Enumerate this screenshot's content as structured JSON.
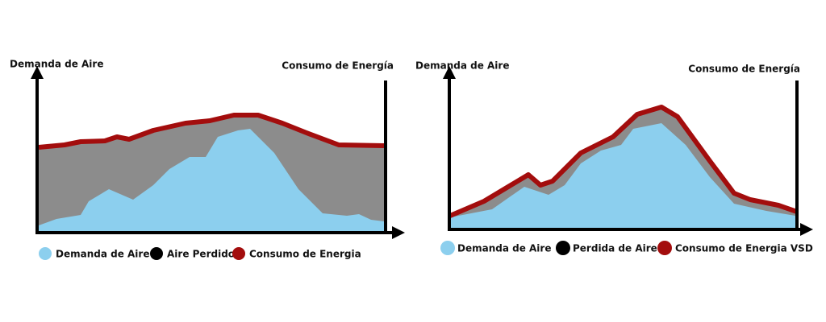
{
  "left": {
    "y_label": "Demanda de Aire",
    "y2_label": "Consumo de Energía",
    "legend": [
      "Demanda de Aire",
      "Aire Perdido",
      "Consumo de Energia"
    ]
  },
  "right": {
    "y_label": "Demanda de Aire",
    "y2_label": "Consumo de Energía",
    "legend": [
      "Demanda de Aire",
      "Perdida de Aire",
      "Consumo de Energia VSD"
    ]
  }
}
